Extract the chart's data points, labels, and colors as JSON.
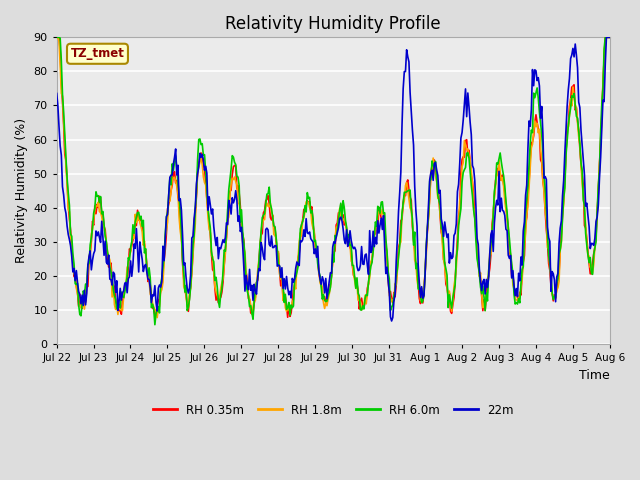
{
  "title": "Relativity Humidity Profile",
  "xlabel": "Time",
  "ylabel": "Relativity Humidity (%)",
  "ylim": [
    0,
    90
  ],
  "yticks": [
    0,
    10,
    20,
    30,
    40,
    50,
    60,
    70,
    80,
    90
  ],
  "annotation_text": "TZ_tmet",
  "annotation_color": "#8B0000",
  "annotation_bg": "#FFFFCC",
  "annotation_border": "#AA8800",
  "line_colors": {
    "RH 0.35m": "#FF0000",
    "RH 1.8m": "#FFA500",
    "RH 6.0m": "#00CC00",
    "22m": "#0000CC"
  },
  "line_width": 1.2,
  "bg_color": "#DDDDDD",
  "plot_bg": "#EBEBEB",
  "xtick_labels": [
    "Jul 22",
    "Jul 23",
    "Jul 24",
    "Jul 25",
    "Jul 26",
    "Jul 27",
    "Jul 28",
    "Jul 29",
    "Jul 30",
    "Jul 31",
    "Aug 1",
    "Aug 2",
    "Aug 3",
    "Aug 4",
    "Aug 5",
    "Aug 6"
  ],
  "n_days": 16,
  "n_points": 480
}
